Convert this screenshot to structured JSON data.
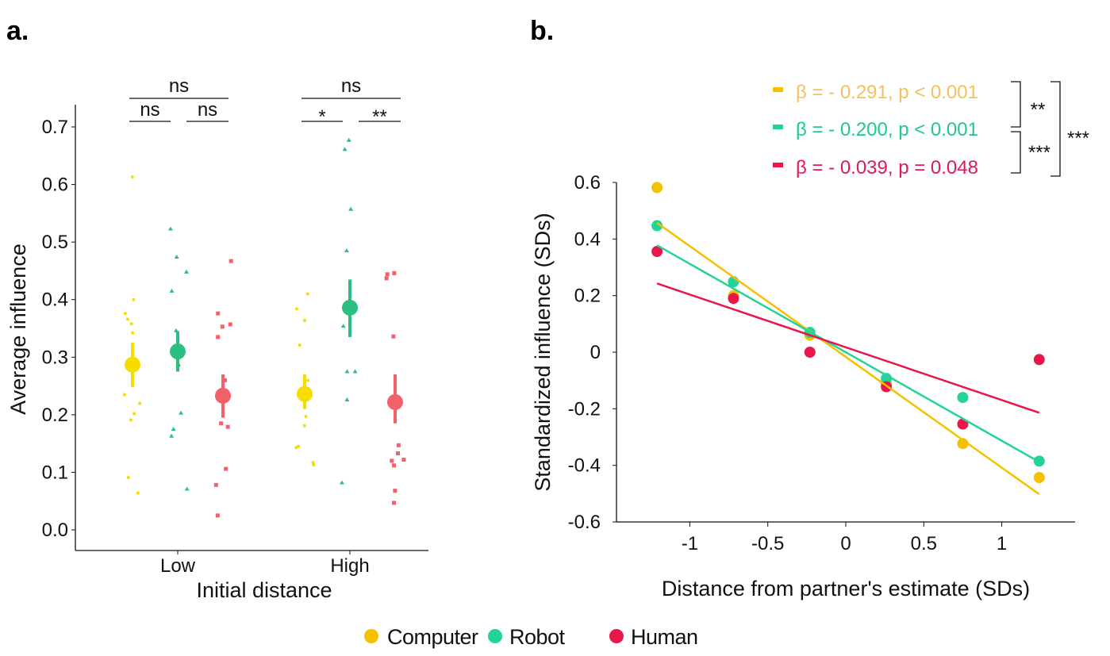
{
  "colors": {
    "computer": "#F5C000",
    "robot": "#22D39A",
    "human": "#E8174A",
    "computer_a": "#F7DC00",
    "robot_a": "#2DBE82",
    "human_a": "#F2606A",
    "computer_text": "#F5C060",
    "robot_text": "#1FC98A",
    "human_text": "#E0185A"
  },
  "legend": {
    "items": [
      {
        "key": "computer",
        "label": "Computer"
      },
      {
        "key": "robot",
        "label": "Robot"
      },
      {
        "key": "human",
        "label": "Human"
      }
    ]
  },
  "chart_data": [
    {
      "panel_label": "a.",
      "type": "scatter",
      "xlabel": "Initial distance",
      "ylabel": "Average influence",
      "ylim": [
        -0.035,
        0.735
      ],
      "yticks": [
        "0.0",
        "0.1",
        "0.2",
        "0.3",
        "0.4",
        "0.5",
        "0.6",
        "0.7"
      ],
      "categories": [
        "Low",
        "High"
      ],
      "grid": false,
      "series": [
        {
          "key": "computer",
          "marker": "circle",
          "means": [
            0.287,
            0.236
          ],
          "ci": [
            [
              0.248,
              0.325
            ],
            [
              0.21,
              0.27
            ]
          ],
          "points": [
            [
              0.613,
              0.4,
              0.376,
              0.366,
              0.358,
              0.342,
              0.235,
              0.22,
              0.202,
              0.191,
              0.091,
              0.064
            ],
            [
              0.41,
              0.384,
              0.364,
              0.321,
              0.26,
              0.235,
              0.197,
              0.181,
              0.145,
              0.143,
              0.117,
              0.113
            ]
          ]
        },
        {
          "key": "robot",
          "marker": "triangle",
          "means": [
            0.31,
            0.386
          ],
          "ci": [
            [
              0.275,
              0.345
            ],
            [
              0.335,
              0.435
            ]
          ],
          "points": [
            [
              0.523,
              0.474,
              0.448,
              0.415,
              0.346,
              0.287,
              0.203,
              0.175,
              0.163,
              0.071
            ],
            [
              0.677,
              0.661,
              0.557,
              0.485,
              0.354,
              0.275,
              0.275,
              0.226,
              0.082
            ]
          ]
        },
        {
          "key": "human",
          "marker": "square",
          "means": [
            0.233,
            0.222
          ],
          "ci": [
            [
              0.195,
              0.27
            ],
            [
              0.185,
              0.27
            ]
          ],
          "points": [
            [
              0.467,
              0.376,
              0.357,
              0.353,
              0.335,
              0.26,
              0.185,
              0.179,
              0.106,
              0.078,
              0.025
            ],
            [
              0.446,
              0.444,
              0.437,
              0.336,
              0.147,
              0.133,
              0.122,
              0.12,
              0.112,
              0.068,
              0.047
            ]
          ]
        }
      ],
      "significance": {
        "Low": {
          "overall": "ns",
          "computer_vs_robot": "ns",
          "robot_vs_human": "ns"
        },
        "High": {
          "overall": "ns",
          "computer_vs_robot": "*",
          "robot_vs_human": "**"
        }
      }
    },
    {
      "panel_label": "b.",
      "type": "scatter",
      "xlabel": "Distance from partner's estimate (SDs)",
      "ylabel": "Standardized influence (SDs)",
      "xlim": [
        -1.47,
        1.47
      ],
      "ylim": [
        -0.6,
        0.6
      ],
      "xticks": [
        "-1",
        "-0.5",
        "0",
        "0.5",
        "1"
      ],
      "yticks": [
        "0.6",
        "0.4",
        "0.2",
        "0",
        "-0.2",
        "-0.4",
        "-0.6"
      ],
      "grid": false,
      "x": [
        -1.21,
        -0.72,
        -0.23,
        0.26,
        0.75,
        1.24
      ],
      "series": [
        {
          "key": "computer",
          "y": [
            0.582,
            0.2,
            0.06,
            -0.11,
            -0.323,
            -0.443
          ],
          "fit": [
            [
              -1.21,
              0.457
            ],
            [
              1.24,
              -0.502
            ]
          ],
          "label": "β = - 0.291, p < 0.001"
        },
        {
          "key": "robot",
          "y": [
            0.447,
            0.249,
            0.07,
            -0.093,
            -0.16,
            -0.385
          ],
          "fit": [
            [
              -1.21,
              0.378
            ],
            [
              1.24,
              -0.388
            ]
          ],
          "label": "β = - 0.200, p < 0.001"
        },
        {
          "key": "human",
          "y": [
            0.356,
            0.19,
            0.0,
            -0.122,
            -0.254,
            -0.026
          ],
          "fit": [
            [
              -1.21,
              0.243
            ],
            [
              1.24,
              -0.214
            ]
          ],
          "label": "β = - 0.039, p = 0.048"
        }
      ],
      "legend_position": "top-right",
      "slope_comparisons": {
        "computer_vs_robot": "**",
        "robot_vs_human": "***",
        "computer_vs_human": "***"
      }
    }
  ]
}
